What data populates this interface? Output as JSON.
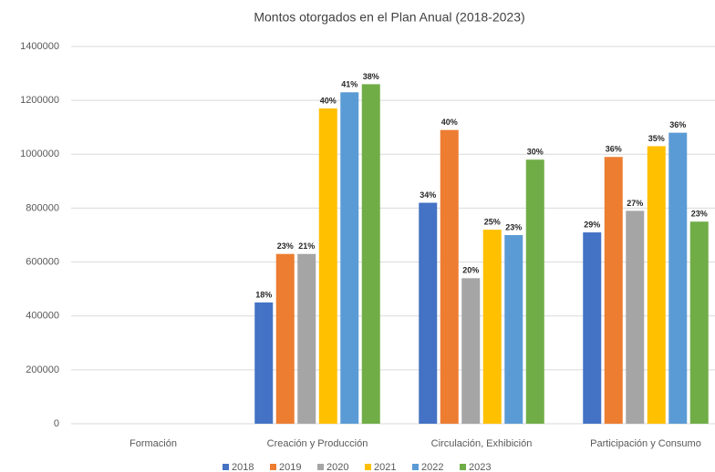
{
  "chart_data": {
    "type": "bar",
    "title": "Montos otorgados en el Plan Anual (2018-2023)",
    "categories": [
      "Formación",
      "Creación y Producción",
      "Circulación, Exhibición",
      "Participación y Consumo"
    ],
    "series": [
      {
        "name": "2018",
        "color": "#4472c4",
        "values": [
          null,
          450000,
          820000,
          710000
        ],
        "share_labels": [
          null,
          "18%",
          "34%",
          "29%"
        ]
      },
      {
        "name": "2019",
        "color": "#ed7d31",
        "values": [
          null,
          630000,
          1090000,
          990000
        ],
        "share_labels": [
          null,
          "23%",
          "40%",
          "36%"
        ]
      },
      {
        "name": "2020",
        "color": "#a5a5a5",
        "values": [
          null,
          630000,
          540000,
          790000
        ],
        "share_labels": [
          null,
          "21%",
          "20%",
          "27%"
        ]
      },
      {
        "name": "2021",
        "color": "#ffc000",
        "values": [
          null,
          1170000,
          720000,
          1030000
        ],
        "share_labels": [
          null,
          "40%",
          "25%",
          "35%"
        ]
      },
      {
        "name": "2022",
        "color": "#5b9bd5",
        "values": [
          null,
          1230000,
          700000,
          1080000
        ],
        "share_labels": [
          null,
          "41%",
          "23%",
          "36%"
        ]
      },
      {
        "name": "2023",
        "color": "#70ad47",
        "values": [
          null,
          1260000,
          980000,
          750000
        ],
        "share_labels": [
          null,
          "38%",
          "30%",
          "23%"
        ]
      }
    ],
    "ylim": [
      0,
      1400000
    ],
    "yticks": [
      0,
      200000,
      400000,
      600000,
      800000,
      1000000,
      1200000,
      1400000
    ],
    "grid": true,
    "legend": "bottom"
  }
}
